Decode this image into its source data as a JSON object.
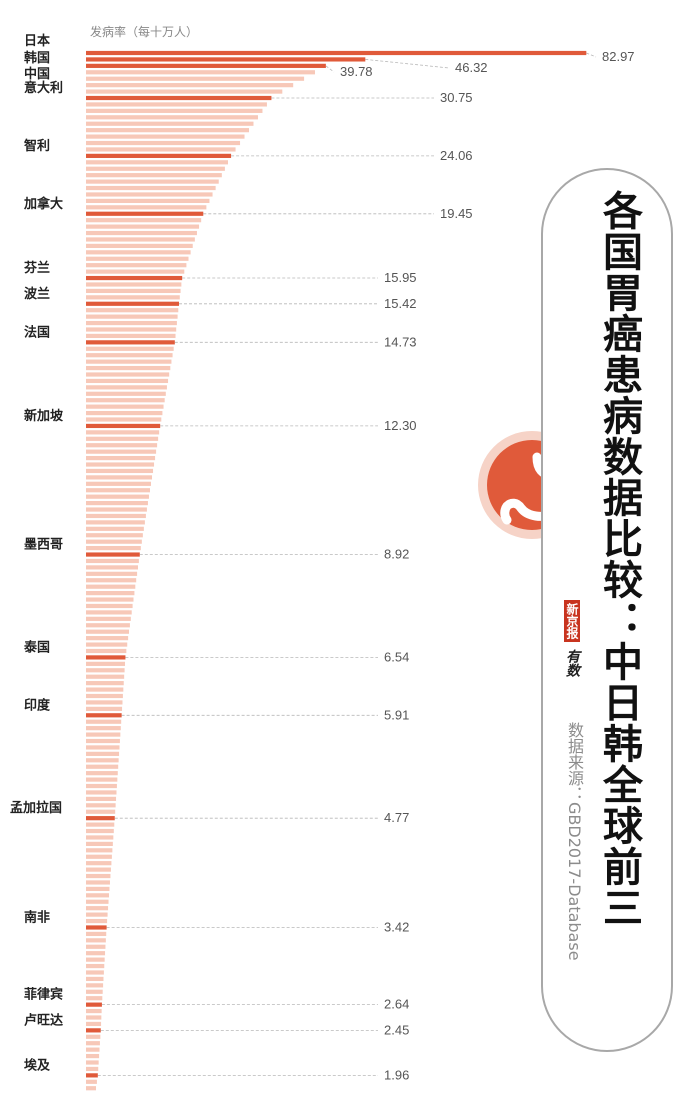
{
  "chart_data": {
    "type": "bar",
    "orientation": "horizontal",
    "ylabel": "发病率（每十万人）",
    "sorted": "descending",
    "bar_count": 162,
    "highlight_color": "#e05a3a",
    "other_color": "#f7c8b8",
    "labeled": [
      {
        "rank": 1,
        "name": "日本",
        "value": 82.97
      },
      {
        "rank": 2,
        "name": "韩国",
        "value": 46.32
      },
      {
        "rank": 3,
        "name": "中国",
        "value": 39.78
      },
      {
        "rank": 8,
        "name": "意大利",
        "value": 30.75
      },
      {
        "rank": 17,
        "name": "智利",
        "value": 24.06
      },
      {
        "rank": 26,
        "name": "加拿大",
        "value": 19.45
      },
      {
        "rank": 36,
        "name": "芬兰",
        "value": 15.95
      },
      {
        "rank": 40,
        "name": "波兰",
        "value": 15.42
      },
      {
        "rank": 46,
        "name": "法国",
        "value": 14.73
      },
      {
        "rank": 59,
        "name": "新加坡",
        "value": 12.3
      },
      {
        "rank": 79,
        "name": "墨西哥",
        "value": 8.92
      },
      {
        "rank": 95,
        "name": "泰国",
        "value": 6.54
      },
      {
        "rank": 104,
        "name": "印度",
        "value": 5.91
      },
      {
        "rank": 120,
        "name": "孟加拉国",
        "value": 4.77
      },
      {
        "rank": 137,
        "name": "南非",
        "value": 3.42
      },
      {
        "rank": 149,
        "name": "菲律宾",
        "value": 2.64
      },
      {
        "rank": 153,
        "name": "卢旺达",
        "value": 2.45
      },
      {
        "rank": 160,
        "name": "埃及",
        "value": 1.96
      }
    ]
  },
  "title": "各国胃癌患病数据比较：中日韩全球前三",
  "source": "数据来源：GBD2017-Database",
  "logo": {
    "paper": "新京报",
    "script": "有数"
  },
  "icons": {
    "center": "stomach-icon"
  }
}
